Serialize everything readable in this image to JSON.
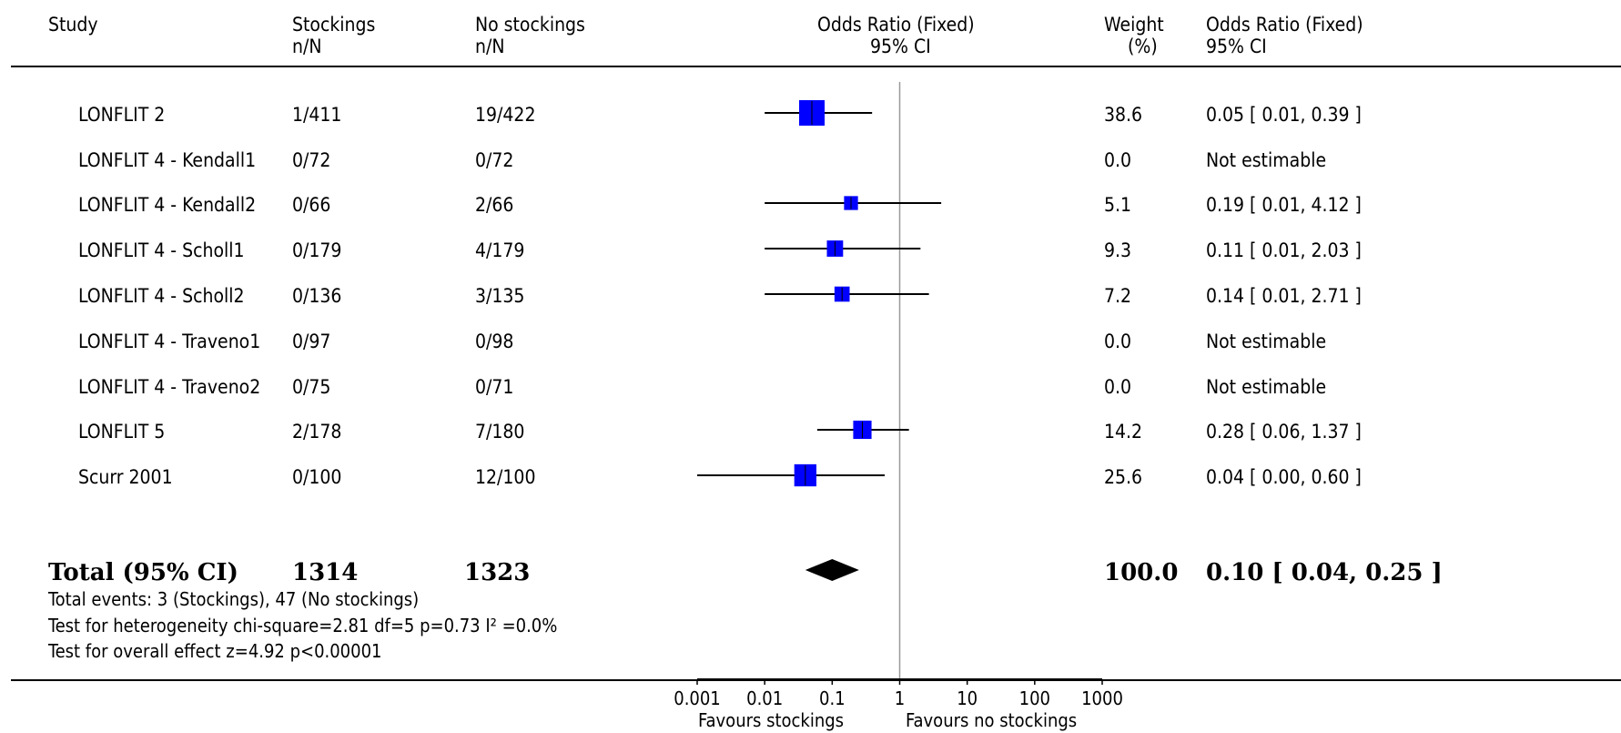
{
  "header": {
    "study": "Study",
    "group1": "Stockings",
    "group1_sub": "n/N",
    "group2": "No stockings",
    "group2_sub": "n/N",
    "plot_title": "Odds Ratio (Fixed)",
    "plot_sub": "95% CI",
    "weight": "Weight",
    "weight_sub": "(%)",
    "or_title": "Odds Ratio (Fixed)",
    "or_sub": "95% CI"
  },
  "rows": [
    {
      "study": "LONFLIT 2",
      "g1": "1/411",
      "g2": "19/422",
      "weight": "38.6",
      "ci_text": "0.05 [ 0.01, 0.39 ]"
    },
    {
      "study": "LONFLIT 4 - Kendall1",
      "g1": "0/72",
      "g2": "0/72",
      "weight": "0.0",
      "ci_text": "Not estimable"
    },
    {
      "study": "LONFLIT 4 - Kendall2",
      "g1": "0/66",
      "g2": "2/66",
      "weight": "5.1",
      "ci_text": "0.19 [ 0.01, 4.12 ]"
    },
    {
      "study": "LONFLIT 4 - Scholl1",
      "g1": "0/179",
      "g2": "4/179",
      "weight": "9.3",
      "ci_text": "0.11 [ 0.01, 2.03 ]"
    },
    {
      "study": "LONFLIT 4 - Scholl2",
      "g1": "0/136",
      "g2": "3/135",
      "weight": "7.2",
      "ci_text": "0.14 [ 0.01, 2.71 ]"
    },
    {
      "study": "LONFLIT 4 - Traveno1",
      "g1": "0/97",
      "g2": "0/98",
      "weight": "0.0",
      "ci_text": "Not estimable"
    },
    {
      "study": "LONFLIT 4 - Traveno2",
      "g1": "0/75",
      "g2": "0/71",
      "weight": "0.0",
      "ci_text": "Not estimable"
    },
    {
      "study": "LONFLIT 5",
      "g1": "2/178",
      "g2": "7/180",
      "weight": "14.2",
      "ci_text": "0.28 [ 0.06, 1.37 ]"
    },
    {
      "study": "Scurr 2001",
      "g1": "0/100",
      "g2": "12/100",
      "weight": "25.6",
      "ci_text": "0.04 [ 0.00, 0.60 ]"
    }
  ],
  "total": {
    "label": "Total (95% CI)",
    "g1": "1314",
    "g2": "1323",
    "weight": "100.0",
    "ci_text": "0.10 [ 0.04, 0.25 ]"
  },
  "footnotes": {
    "events": "Total events: 3 (Stockings), 47 (No stockings)",
    "heterogeneity": "Test for heterogeneity chi-square=2.81 df=5 p=0.73 I² =0.0%",
    "overall": "Test for overall effect z=4.92  p<0.00001"
  },
  "axis": {
    "favours_left": "Favours stockings",
    "favours_right": "Favours no stockings"
  },
  "colors": {
    "marker": "#0000ff",
    "line": "#000000",
    "null_line": "#999999"
  },
  "chart_data": {
    "type": "forest",
    "scale": "log",
    "xlim": [
      0.001,
      1000
    ],
    "ticks": [
      0.001,
      0.01,
      0.1,
      1,
      10,
      100,
      1000
    ],
    "tick_labels": [
      "0.001",
      "0.01",
      "0.1",
      "1",
      "10",
      "100",
      "1000"
    ],
    "null_value": 1,
    "studies": [
      {
        "name": "LONFLIT 2",
        "or": 0.05,
        "lo": 0.01,
        "hi": 0.39,
        "weight": 38.6
      },
      {
        "name": "LONFLIT 4 - Kendall1",
        "or": null,
        "lo": null,
        "hi": null,
        "weight": 0.0
      },
      {
        "name": "LONFLIT 4 - Kendall2",
        "or": 0.19,
        "lo": 0.01,
        "hi": 4.12,
        "weight": 5.1
      },
      {
        "name": "LONFLIT 4 - Scholl1",
        "or": 0.11,
        "lo": 0.01,
        "hi": 2.03,
        "weight": 9.3
      },
      {
        "name": "LONFLIT 4 - Scholl2",
        "or": 0.14,
        "lo": 0.01,
        "hi": 2.71,
        "weight": 7.2
      },
      {
        "name": "LONFLIT 4 - Traveno1",
        "or": null,
        "lo": null,
        "hi": null,
        "weight": 0.0
      },
      {
        "name": "LONFLIT 4 - Traveno2",
        "or": null,
        "lo": null,
        "hi": null,
        "weight": 0.0
      },
      {
        "name": "LONFLIT 5",
        "or": 0.28,
        "lo": 0.06,
        "hi": 1.37,
        "weight": 14.2
      },
      {
        "name": "Scurr 2001",
        "or": 0.04,
        "lo": 0.0,
        "hi": 0.6,
        "weight": 25.6
      }
    ],
    "pooled": {
      "or": 0.1,
      "lo": 0.04,
      "hi": 0.25,
      "weight": 100.0
    }
  }
}
